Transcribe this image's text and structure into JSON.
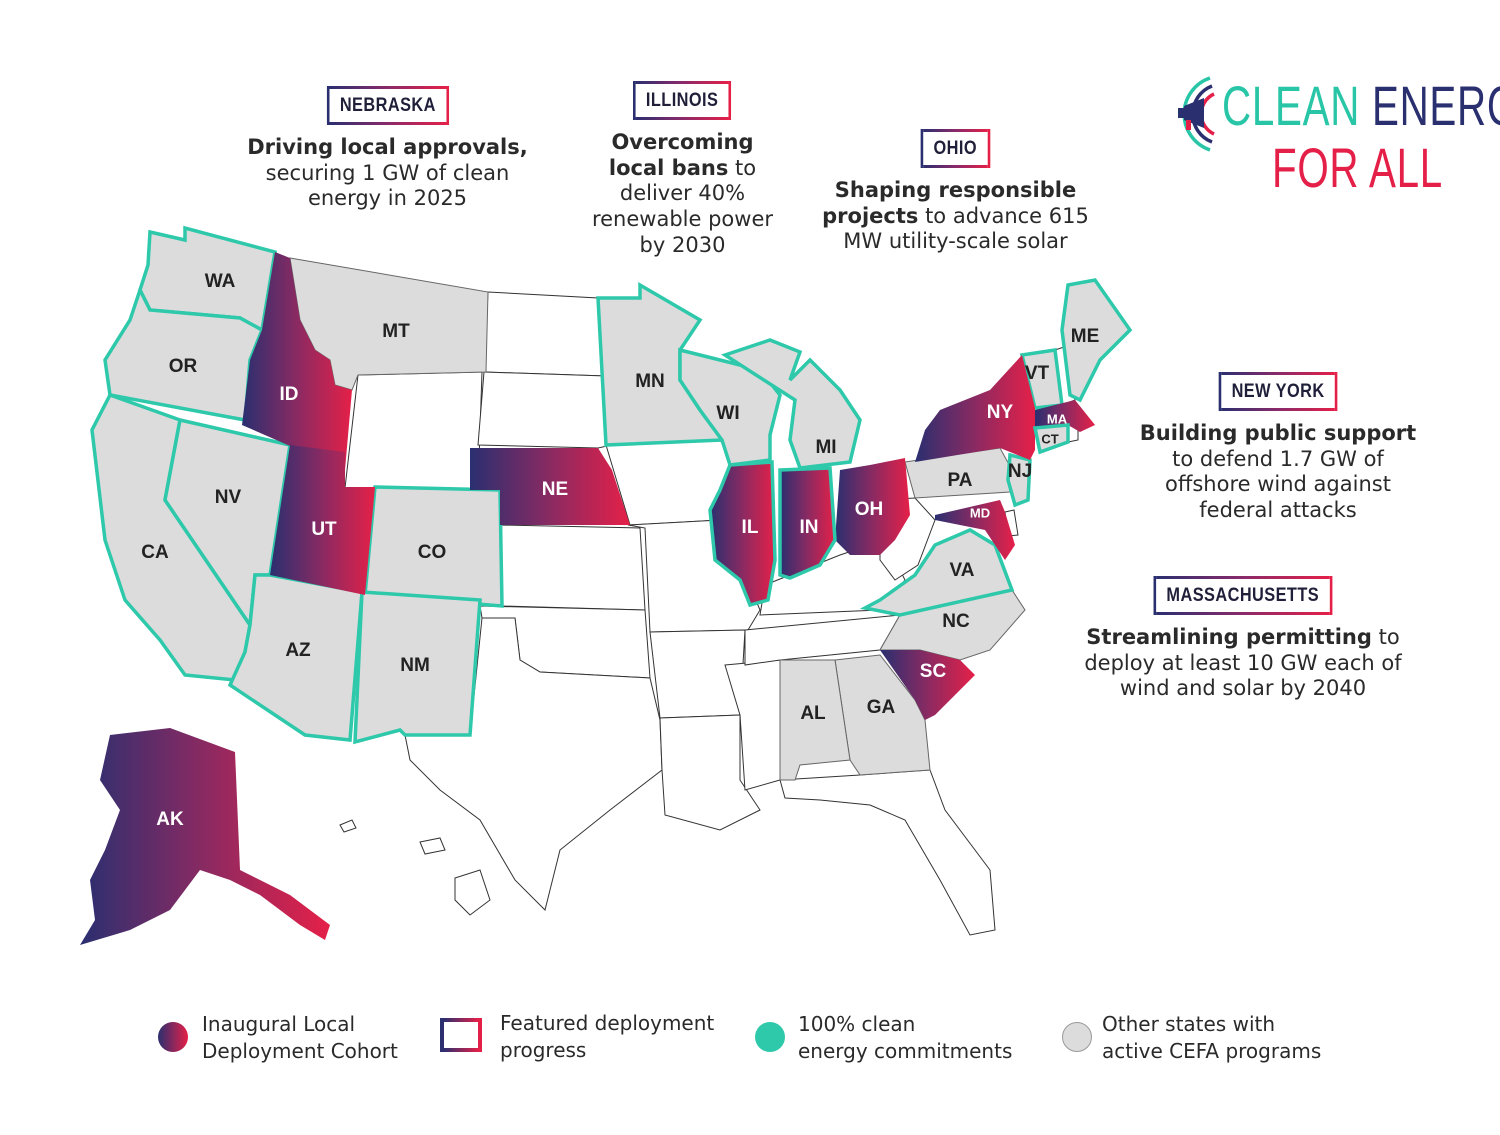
{
  "logo": {
    "line1_a": "CLEAN",
    "line1_b": "ENERGY",
    "line2": "FOR ALL",
    "icon": "megaphone-icon"
  },
  "colors": {
    "teal": "#2ec8aa",
    "gray_fill": "#dcdcdc",
    "grad_start": "#2a2f70",
    "grad_end": "#e52048"
  },
  "callouts": [
    {
      "tag": "NEBRASKA",
      "bold": "Driving local approvals,",
      "rest": " securing 1 GW of clean energy in 2025"
    },
    {
      "tag": "ILLINOIS",
      "bold": "Overcoming local bans",
      "rest": " to deliver 40% renewable power by 2030"
    },
    {
      "tag": "OHIO",
      "bold": "Shaping responsible projects",
      "rest": " to advance 615 MW utility-scale solar"
    },
    {
      "tag": "NEW YORK",
      "bold": "Building public support",
      "rest": " to defend 1.7 GW of offshore wind against federal attacks"
    },
    {
      "tag": "MASSACHUSETTS",
      "bold": "Streamlining permitting",
      "rest": " to deploy at least 10 GW each of wind and solar by 2040"
    }
  ],
  "states": {
    "WA": "WA",
    "OR": "OR",
    "CA": "CA",
    "NV": "NV",
    "ID": "ID",
    "MT": "MT",
    "UT": "UT",
    "AZ": "AZ",
    "CO": "CO",
    "NM": "NM",
    "NE": "NE",
    "MN": "MN",
    "WI": "WI",
    "MI": "MI",
    "IL": "IL",
    "IN": "IN",
    "OH": "OH",
    "PA": "PA",
    "NY": "NY",
    "VT": "VT",
    "ME": "ME",
    "MA": "MA",
    "CT": "CT",
    "NJ": "NJ",
    "MD": "MD",
    "VA": "VA",
    "NC": "NC",
    "SC": "SC",
    "GA": "GA",
    "AL": "AL",
    "AK": "AK"
  },
  "legend": [
    {
      "label1": "Inaugural Local",
      "label2": "Deployment Cohort",
      "kind": "gradient-dot"
    },
    {
      "label1": "Featured deployment",
      "label2": "progress",
      "kind": "gradient-outline"
    },
    {
      "label1": "100% clean",
      "label2": "energy commitments",
      "kind": "teal-dot"
    },
    {
      "label1": "Other states with",
      "label2": "active CEFA programs",
      "kind": "gray-dot"
    }
  ]
}
